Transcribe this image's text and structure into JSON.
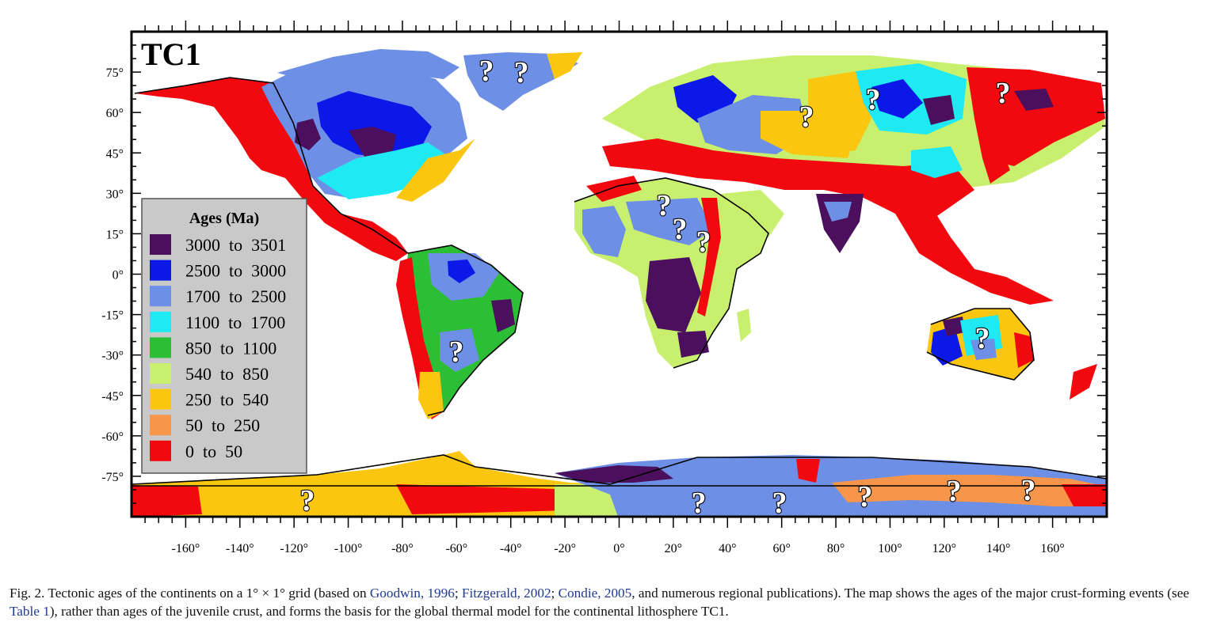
{
  "map": {
    "title": "TC1",
    "lat_labels": [
      "75°",
      "60°",
      "45°",
      "30°",
      "15°",
      "0°",
      "-15°",
      "-30°",
      "-45°",
      "-60°",
      "-75°"
    ],
    "lat_values": [
      75,
      60,
      45,
      30,
      15,
      0,
      -15,
      -30,
      -45,
      -60,
      -75
    ],
    "lon_labels": [
      "-160°",
      "-140°",
      "-120°",
      "-100°",
      "-80°",
      "-60°",
      "-40°",
      "-20°",
      "0°",
      "20°",
      "40°",
      "60°",
      "80°",
      "100°",
      "120°",
      "140°",
      "160°"
    ],
    "lon_values": [
      -160,
      -140,
      -120,
      -100,
      -80,
      -60,
      -40,
      -20,
      0,
      20,
      40,
      60,
      80,
      100,
      120,
      140,
      160
    ],
    "lon_range": [
      -180,
      180
    ],
    "lat_range": [
      -90,
      90
    ],
    "unknown_marker": "?"
  },
  "legend": {
    "title": "Ages (Ma)",
    "placement": "lower-left",
    "items": [
      {
        "label": "3000  to  3501",
        "color": "#4b0f5e"
      },
      {
        "label": "2500  to  3000",
        "color": "#0b18e8"
      },
      {
        "label": "1700  to  2500",
        "color": "#6e8fe6"
      },
      {
        "label": "1100  to  1700",
        "color": "#1fe9f2"
      },
      {
        "label": "850  to  1100",
        "color": "#2cbf35"
      },
      {
        "label": "540  to  850",
        "color": "#c8f06e"
      },
      {
        "label": "250  to  540",
        "color": "#fac60f"
      },
      {
        "label": "50  to  250",
        "color": "#f7954a"
      },
      {
        "label": "0  to  50",
        "color": "#f2090f"
      }
    ]
  },
  "caption": {
    "p1": "Fig. 2. Tectonic ages of the continents on a 1° × 1° grid (based on ",
    "c1": "Goodwin, 1996",
    "s1": "; ",
    "c2": "Fitzgerald, 2002",
    "s2": "; ",
    "c3": "Condie, 2005",
    "p2": ", and numerous regional publications). The map shows the ages of the major crust-forming events (see ",
    "c4": "Table 1",
    "p3": "), rather than ages of the juvenile crust, and forms the basis for the global thermal model for the continental lithosphere TC1."
  }
}
